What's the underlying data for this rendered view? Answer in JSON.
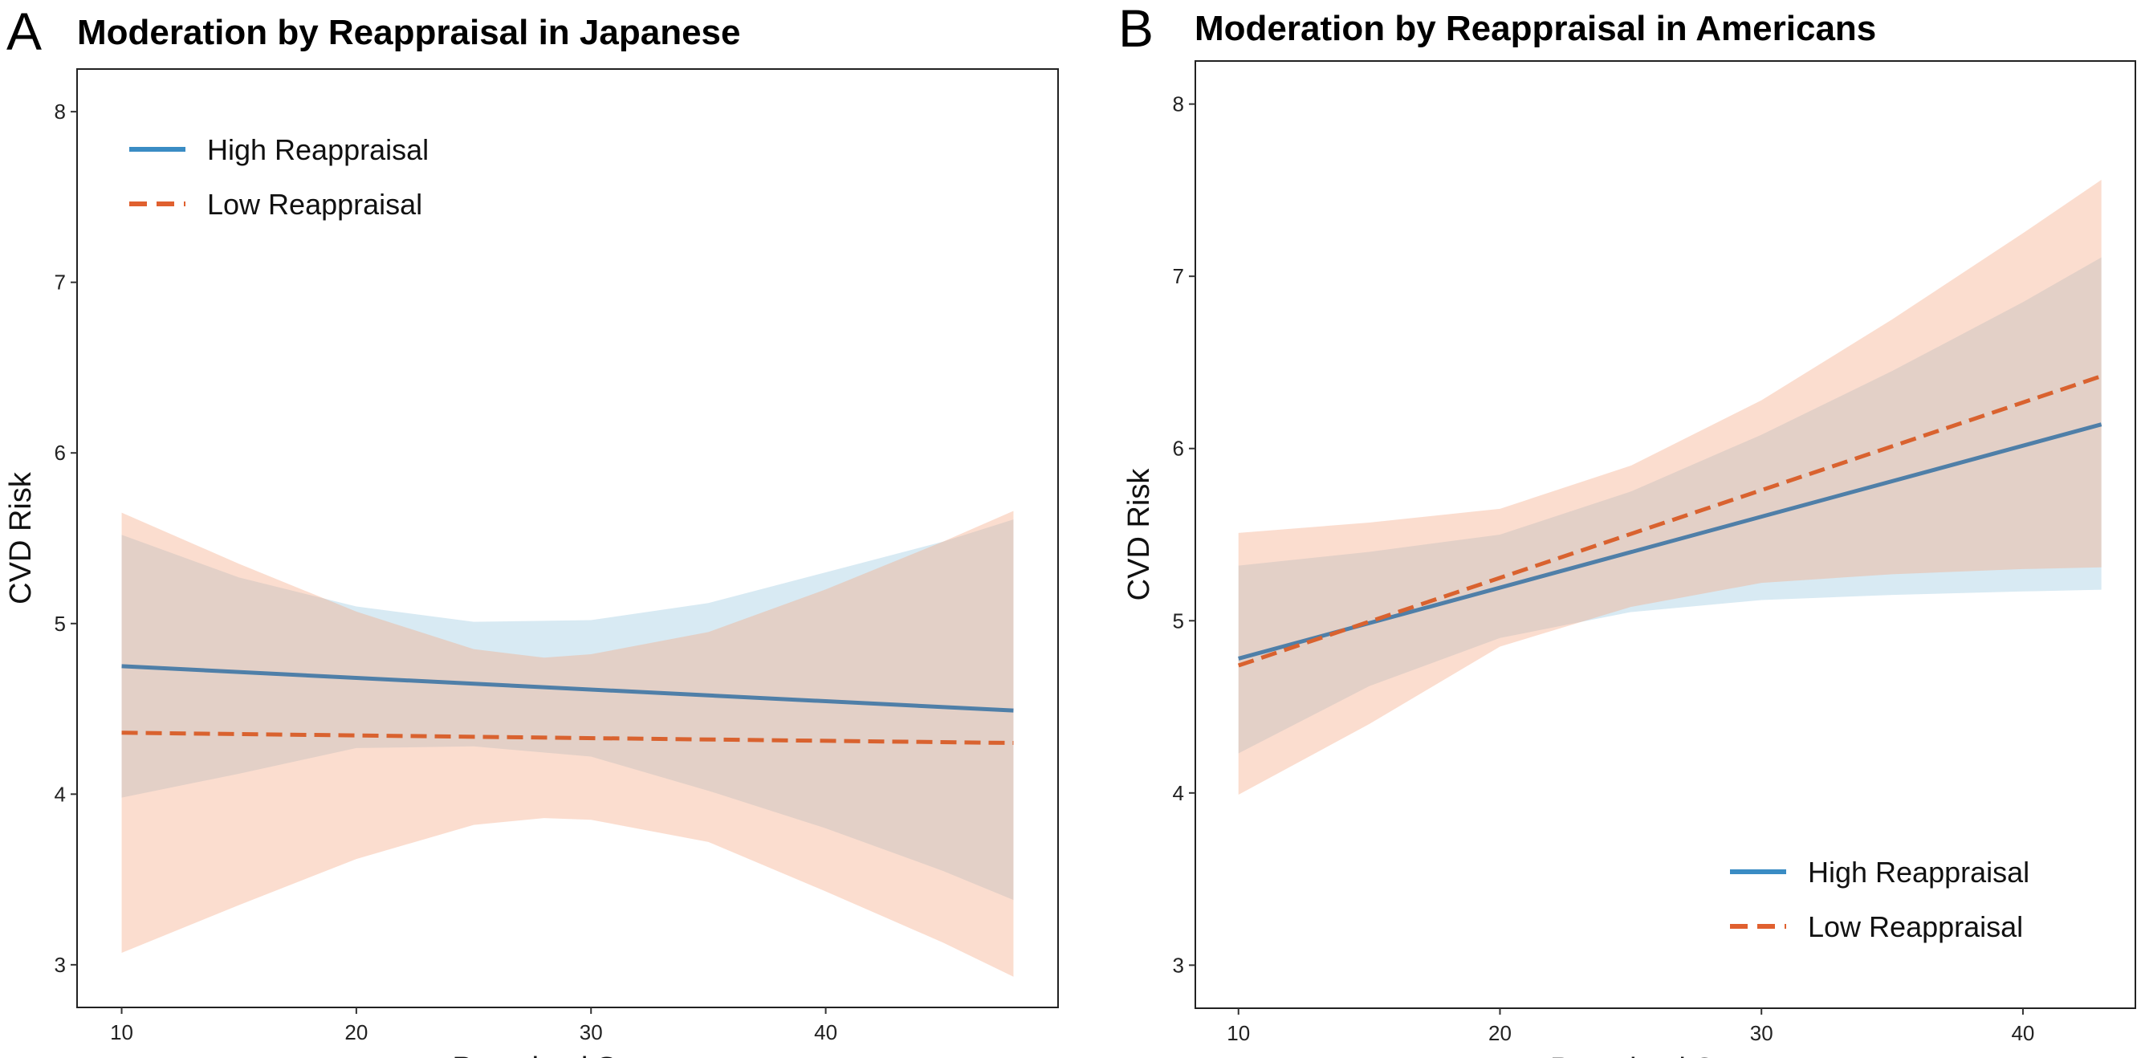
{
  "chart_data": [
    {
      "type": "line",
      "panel_label": "A",
      "title": "Moderation by Reappraisal in Japanese",
      "xlabel": "Perceived Stress",
      "ylabel": "CVD Risk",
      "xlim": [
        8.1,
        49.9
      ],
      "ylim": [
        2.75,
        8.25
      ],
      "xticks": [
        10,
        20,
        30,
        40
      ],
      "yticks": [
        3,
        4,
        5,
        6,
        7,
        8
      ],
      "grid": false,
      "legend_position": "top-left",
      "series": [
        {
          "name": "High Reappraisal",
          "color": "#4f7fa8",
          "legend_color": "#3a8cc4",
          "style": "solid",
          "band_color": "#9ecae1",
          "x": [
            10,
            48
          ],
          "y": [
            4.75,
            4.49
          ],
          "band": {
            "x": [
              10,
              15,
              20,
              25,
              30,
              35,
              40,
              45,
              48
            ],
            "lower": [
              3.98,
              4.12,
              4.27,
              4.28,
              4.22,
              4.02,
              3.8,
              3.55,
              3.38
            ],
            "upper": [
              5.52,
              5.27,
              5.1,
              5.01,
              5.02,
              5.12,
              5.3,
              5.48,
              5.61
            ]
          }
        },
        {
          "name": "Low Reappraisal",
          "color": "#d9622f",
          "legend_color": "#e0602f",
          "style": "dashed",
          "band_color": "#f4a582",
          "x": [
            10,
            48
          ],
          "y": [
            4.36,
            4.3
          ],
          "band": {
            "x": [
              10,
              15,
              20,
              25,
              28,
              30,
              35,
              40,
              45,
              48
            ],
            "lower": [
              3.07,
              3.35,
              3.62,
              3.82,
              3.86,
              3.85,
              3.72,
              3.43,
              3.13,
              2.93
            ],
            "upper": [
              5.65,
              5.35,
              5.07,
              4.85,
              4.8,
              4.82,
              4.95,
              5.2,
              5.48,
              5.66
            ]
          }
        }
      ]
    },
    {
      "type": "line",
      "panel_label": "B",
      "title": "Moderation by Reappraisal in Americans",
      "xlabel": "Perceived Stress",
      "ylabel": "CVD Risk",
      "xlim": [
        8.35,
        44.3
      ],
      "ylim": [
        2.75,
        8.25
      ],
      "xticks": [
        10,
        20,
        30,
        40
      ],
      "yticks": [
        3,
        4,
        5,
        6,
        7,
        8
      ],
      "grid": false,
      "legend_position": "bottom-right",
      "series": [
        {
          "name": "High Reappraisal",
          "color": "#4f7fa8",
          "legend_color": "#3a8cc4",
          "style": "solid",
          "band_color": "#9ecae1",
          "x": [
            10,
            43
          ],
          "y": [
            4.78,
            6.14
          ],
          "band": {
            "x": [
              10,
              15,
              20,
              25,
              30,
              35,
              40,
              43
            ],
            "lower": [
              4.23,
              4.62,
              4.9,
              5.05,
              5.12,
              5.15,
              5.17,
              5.18
            ],
            "upper": [
              5.32,
              5.4,
              5.5,
              5.75,
              6.08,
              6.45,
              6.85,
              7.11
            ]
          }
        },
        {
          "name": "Low Reappraisal",
          "color": "#d9622f",
          "legend_color": "#e0602f",
          "style": "dashed",
          "band_color": "#f4a582",
          "x": [
            10,
            43
          ],
          "y": [
            4.74,
            6.42
          ],
          "band": {
            "x": [
              10,
              15,
              20,
              25,
              30,
              35,
              40,
              43
            ],
            "lower": [
              3.99,
              4.4,
              4.85,
              5.08,
              5.22,
              5.27,
              5.3,
              5.31
            ],
            "upper": [
              5.51,
              5.57,
              5.65,
              5.9,
              6.28,
              6.75,
              7.25,
              7.56
            ]
          }
        }
      ]
    }
  ]
}
